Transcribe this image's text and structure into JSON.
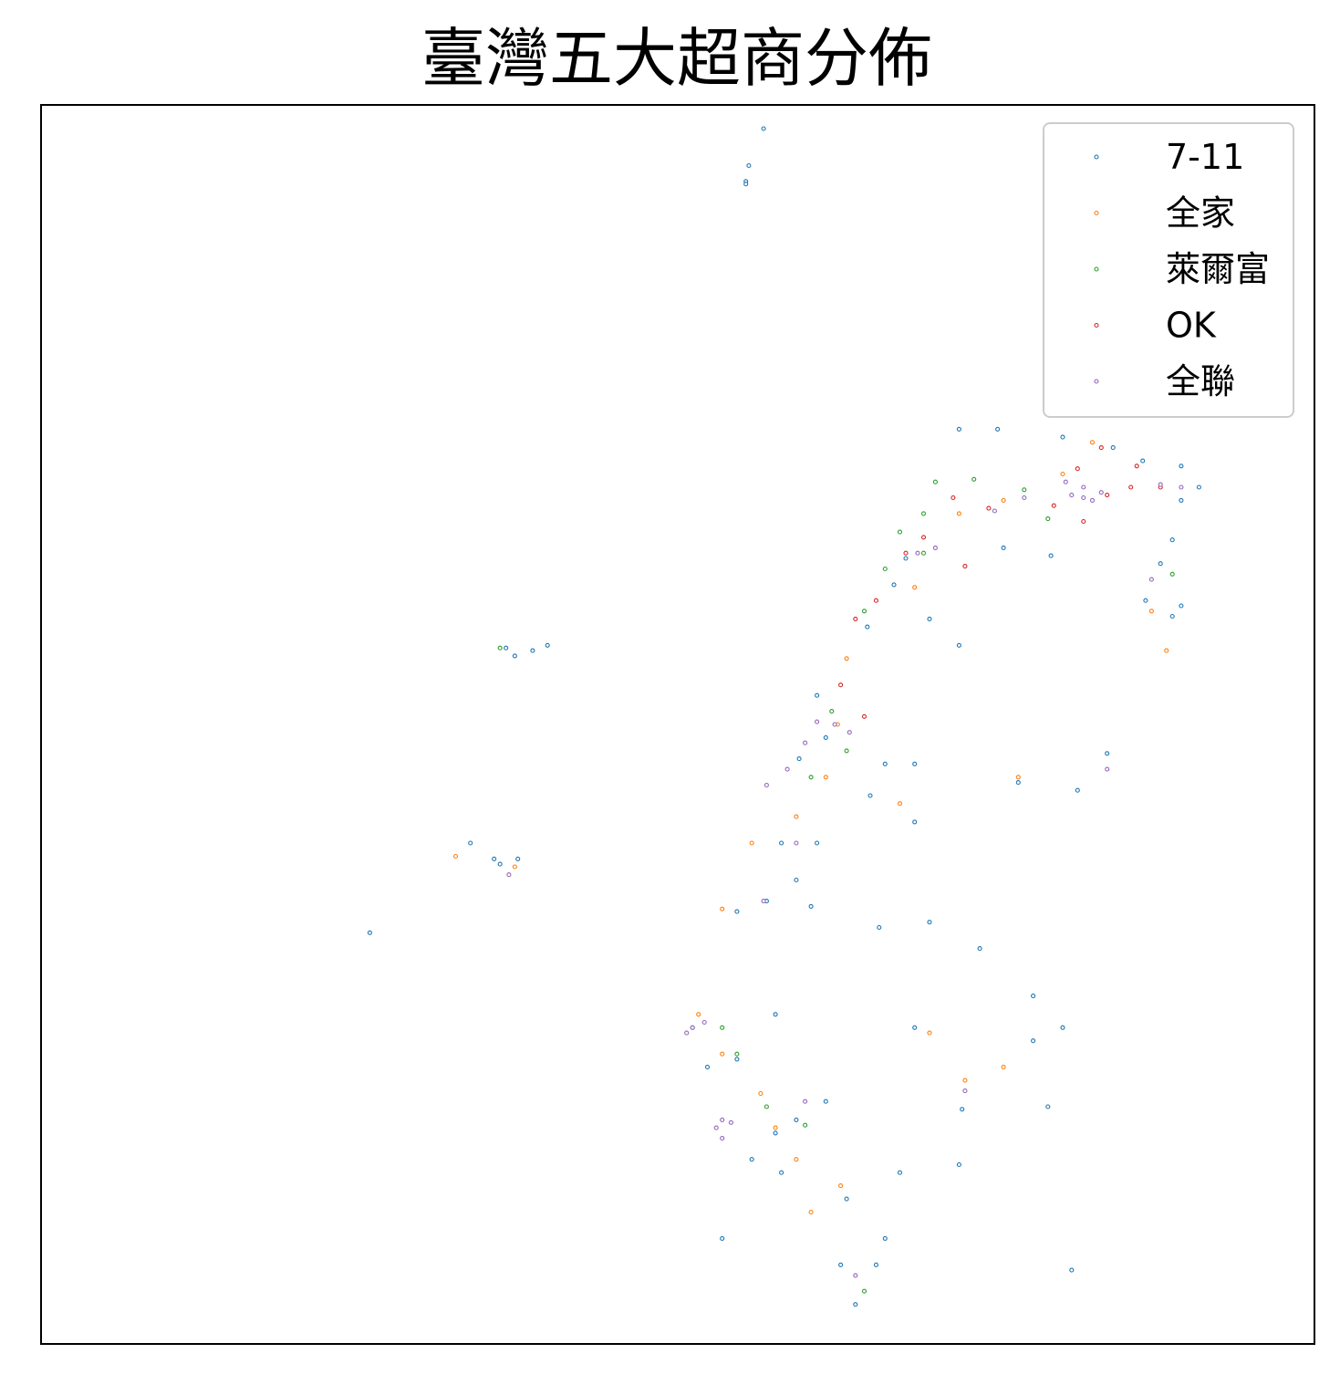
{
  "chart_data": {
    "type": "scatter",
    "title": "臺灣五大超商分佈",
    "xlabel": "",
    "ylabel": "",
    "xlim": [
      118.0,
      122.3
    ],
    "ylim": [
      21.8,
      26.5
    ],
    "ticks": "none",
    "legend": "top-right",
    "grid": false,
    "series": [
      {
        "name": "7-11",
        "color": "#1f77b4",
        "points": [
          [
            120.44,
            26.41
          ],
          [
            120.39,
            26.27
          ],
          [
            120.38,
            26.21
          ],
          [
            120.38,
            26.2
          ],
          [
            119.71,
            24.45
          ],
          [
            119.66,
            24.43
          ],
          [
            119.57,
            24.44
          ],
          [
            119.6,
            24.41
          ],
          [
            119.45,
            23.7
          ],
          [
            119.53,
            23.64
          ],
          [
            119.61,
            23.64
          ],
          [
            119.55,
            23.62
          ],
          [
            119.11,
            23.36
          ],
          [
            121.1,
            25.27
          ],
          [
            121.23,
            25.27
          ],
          [
            121.45,
            25.24
          ],
          [
            121.62,
            25.2
          ],
          [
            121.72,
            25.15
          ],
          [
            121.85,
            25.13
          ],
          [
            121.91,
            25.05
          ],
          [
            121.85,
            25.0
          ],
          [
            121.82,
            24.85
          ],
          [
            121.78,
            24.76
          ],
          [
            121.73,
            24.62
          ],
          [
            121.85,
            24.6
          ],
          [
            121.82,
            24.56
          ],
          [
            121.41,
            24.79
          ],
          [
            121.25,
            24.82
          ],
          [
            120.92,
            24.78
          ],
          [
            120.88,
            24.68
          ],
          [
            120.79,
            24.52
          ],
          [
            121.0,
            24.55
          ],
          [
            121.1,
            24.45
          ],
          [
            120.62,
            24.26
          ],
          [
            120.65,
            24.1
          ],
          [
            120.56,
            24.02
          ],
          [
            120.85,
            24.0
          ],
          [
            120.95,
            24.0
          ],
          [
            121.6,
            24.04
          ],
          [
            121.5,
            23.9
          ],
          [
            121.3,
            23.93
          ],
          [
            120.95,
            23.78
          ],
          [
            120.8,
            23.88
          ],
          [
            120.62,
            23.7
          ],
          [
            120.55,
            23.56
          ],
          [
            120.35,
            23.44
          ],
          [
            120.45,
            23.48
          ],
          [
            120.6,
            23.46
          ],
          [
            120.83,
            23.38
          ],
          [
            121.17,
            23.3
          ],
          [
            121.35,
            23.12
          ],
          [
            121.45,
            23.0
          ],
          [
            120.95,
            23.0
          ],
          [
            120.48,
            23.05
          ],
          [
            120.2,
            23.0
          ],
          [
            120.25,
            22.85
          ],
          [
            120.35,
            22.88
          ],
          [
            120.55,
            22.65
          ],
          [
            120.65,
            22.72
          ],
          [
            120.48,
            22.6
          ],
          [
            120.5,
            22.45
          ],
          [
            120.4,
            22.5
          ],
          [
            120.72,
            22.35
          ],
          [
            120.9,
            22.45
          ],
          [
            121.1,
            22.48
          ],
          [
            121.4,
            22.7
          ],
          [
            121.35,
            22.95
          ],
          [
            120.7,
            22.1
          ],
          [
            120.82,
            22.1
          ],
          [
            120.75,
            21.95
          ],
          [
            120.3,
            22.2
          ],
          [
            121.11,
            22.69
          ],
          [
            121.48,
            22.08
          ],
          [
            120.85,
            22.2
          ],
          [
            121.0,
            23.4
          ],
          [
            120.5,
            23.7
          ]
        ]
      },
      {
        "name": "全家",
        "color": "#ff7f0e",
        "points": [
          [
            121.55,
            25.22
          ],
          [
            121.45,
            25.1
          ],
          [
            121.25,
            25.0
          ],
          [
            121.1,
            24.95
          ],
          [
            121.75,
            24.58
          ],
          [
            121.8,
            24.43
          ],
          [
            120.95,
            24.67
          ],
          [
            120.72,
            24.4
          ],
          [
            120.69,
            24.15
          ],
          [
            120.65,
            23.95
          ],
          [
            120.55,
            23.8
          ],
          [
            120.4,
            23.7
          ],
          [
            120.3,
            23.45
          ],
          [
            120.22,
            23.05
          ],
          [
            120.3,
            22.9
          ],
          [
            120.48,
            22.62
          ],
          [
            120.55,
            22.5
          ],
          [
            120.7,
            22.4
          ],
          [
            121.12,
            22.8
          ],
          [
            121.25,
            22.85
          ],
          [
            121.0,
            22.98
          ],
          [
            119.6,
            23.61
          ],
          [
            119.4,
            23.65
          ],
          [
            120.9,
            23.85
          ],
          [
            121.3,
            23.95
          ],
          [
            120.43,
            22.75
          ],
          [
            120.6,
            22.3
          ]
        ]
      },
      {
        "name": "萊爾富",
        "color": "#2ca02c",
        "points": [
          [
            121.02,
            25.07
          ],
          [
            121.15,
            25.08
          ],
          [
            120.98,
            24.95
          ],
          [
            120.9,
            24.88
          ],
          [
            121.32,
            25.04
          ],
          [
            121.4,
            24.93
          ],
          [
            120.85,
            24.74
          ],
          [
            120.78,
            24.58
          ],
          [
            120.67,
            24.2
          ],
          [
            120.72,
            24.05
          ],
          [
            120.3,
            23.0
          ],
          [
            120.35,
            22.9
          ],
          [
            120.45,
            22.7
          ],
          [
            120.58,
            22.63
          ],
          [
            121.82,
            24.72
          ],
          [
            120.98,
            24.8
          ],
          [
            119.55,
            24.44
          ],
          [
            120.78,
            22.0
          ],
          [
            120.6,
            23.95
          ]
        ]
      },
      {
        "name": "OK",
        "color": "#d62728",
        "points": [
          [
            121.58,
            25.2
          ],
          [
            121.5,
            25.12
          ],
          [
            121.6,
            25.02
          ],
          [
            121.68,
            25.05
          ],
          [
            121.78,
            25.05
          ],
          [
            121.42,
            24.98
          ],
          [
            121.52,
            24.92
          ],
          [
            121.2,
            24.97
          ],
          [
            121.08,
            25.01
          ],
          [
            120.98,
            24.86
          ],
          [
            120.92,
            24.8
          ],
          [
            121.12,
            24.75
          ],
          [
            120.82,
            24.62
          ],
          [
            120.75,
            24.55
          ],
          [
            120.7,
            24.3
          ],
          [
            120.78,
            24.18
          ],
          [
            121.7,
            25.13
          ]
        ]
      },
      {
        "name": "全聯",
        "color": "#9467bd",
        "points": [
          [
            121.52,
            25.05
          ],
          [
            121.48,
            25.02
          ],
          [
            121.55,
            25.0
          ],
          [
            121.46,
            25.07
          ],
          [
            121.58,
            25.03
          ],
          [
            121.32,
            25.01
          ],
          [
            121.22,
            24.96
          ],
          [
            121.02,
            24.82
          ],
          [
            120.96,
            24.8
          ],
          [
            121.78,
            25.06
          ],
          [
            121.85,
            25.05
          ],
          [
            121.75,
            24.7
          ],
          [
            120.68,
            24.15
          ],
          [
            120.62,
            24.16
          ],
          [
            120.73,
            24.12
          ],
          [
            120.58,
            24.08
          ],
          [
            120.52,
            23.98
          ],
          [
            120.45,
            23.92
          ],
          [
            120.55,
            23.7
          ],
          [
            120.44,
            23.48
          ],
          [
            120.2,
            23.0
          ],
          [
            120.18,
            22.98
          ],
          [
            120.24,
            23.02
          ],
          [
            120.3,
            22.65
          ],
          [
            120.28,
            22.62
          ],
          [
            120.33,
            22.64
          ],
          [
            120.3,
            22.58
          ],
          [
            120.58,
            22.72
          ],
          [
            121.6,
            23.98
          ],
          [
            121.12,
            22.76
          ],
          [
            119.58,
            23.58
          ],
          [
            120.75,
            22.06
          ],
          [
            121.52,
            25.01
          ]
        ]
      }
    ]
  }
}
